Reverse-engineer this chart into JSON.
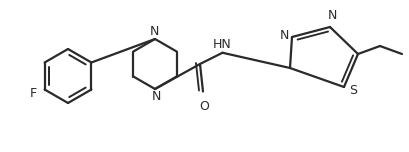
{
  "bg_color": "#ffffff",
  "line_color": "#2a2a2a",
  "line_width": 1.6,
  "figsize": [
    4.1,
    1.52
  ],
  "dpi": 100,
  "xlim": [
    0,
    410
  ],
  "ylim": [
    0,
    152
  ]
}
